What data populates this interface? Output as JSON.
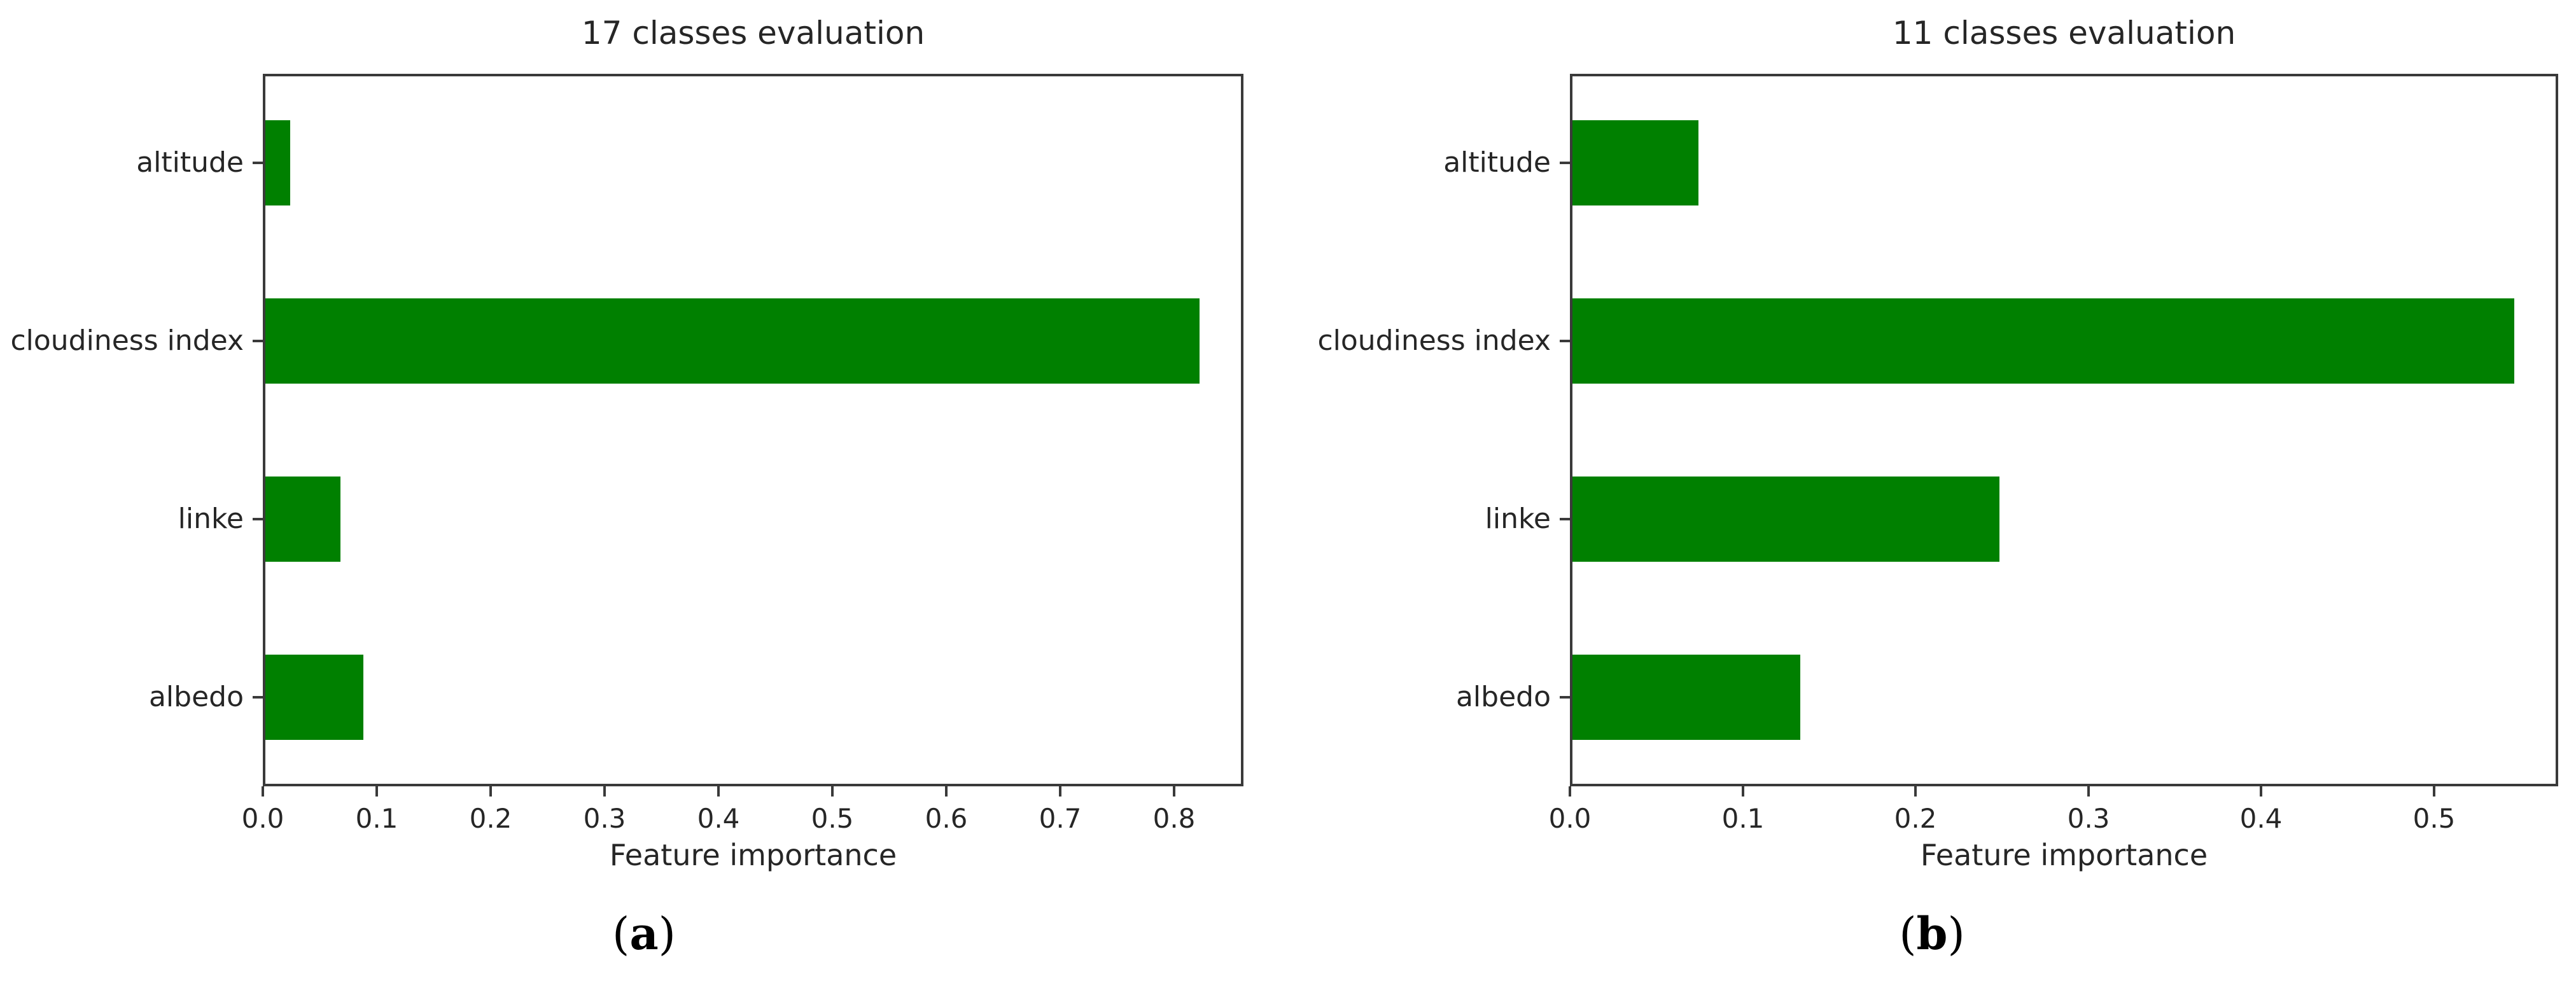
{
  "page": {
    "background": "#ffffff",
    "description_texts": {
      "left_title": "17 classes evaluation",
      "right_title": "11 classes evaluation"
    }
  },
  "captions": [
    {
      "open": "(",
      "letter": "a",
      "close": ")"
    },
    {
      "open": "(",
      "letter": "b",
      "close": ")"
    }
  ],
  "chart_data": [
    {
      "type": "bar",
      "orientation": "horizontal",
      "title": "17 classes evaluation",
      "categories": [
        "altitude",
        "cloudiness index",
        "linke",
        "albedo"
      ],
      "values": [
        0.022,
        0.82,
        0.066,
        0.086
      ],
      "xlabel": "Feature importance",
      "xtick_labels": [
        "0.0",
        "0.1",
        "0.2",
        "0.3",
        "0.4",
        "0.5",
        "0.6",
        "0.7",
        "0.8"
      ],
      "xlim": [
        0,
        0.861
      ],
      "grid": false,
      "legend": false,
      "bar_color": "#008000"
    },
    {
      "type": "bar",
      "orientation": "horizontal",
      "title": "11 classes evaluation",
      "categories": [
        "altitude",
        "cloudiness index",
        "linke",
        "albedo"
      ],
      "values": [
        0.073,
        0.545,
        0.247,
        0.132
      ],
      "xlabel": "Feature importance",
      "xtick_labels": [
        "0.0",
        "0.1",
        "0.2",
        "0.3",
        "0.4",
        "0.5"
      ],
      "xlim": [
        0,
        0.572
      ],
      "grid": false,
      "legend": false,
      "bar_color": "#008000"
    }
  ]
}
